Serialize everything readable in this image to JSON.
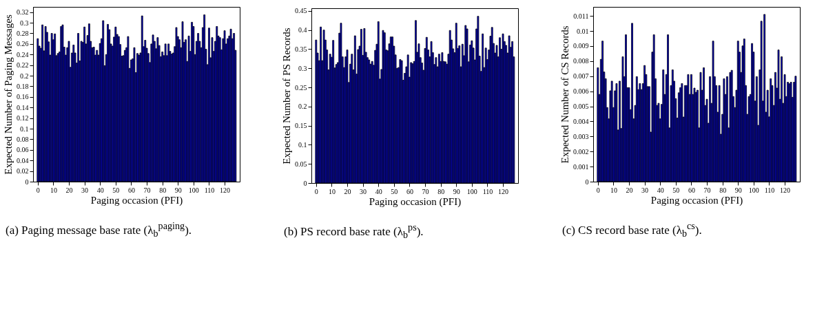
{
  "chart_data": [
    {
      "type": "bar",
      "xlabel": "Paging occasion (PFI)",
      "ylabel": "Expected Number of Paging Messages",
      "annotations": [
        "(a) Paging message base rate (λ$_{b}$$^{paging}$)."
      ],
      "color": "#0000cc",
      "xlim": [
        -0.8,
        127.5
      ],
      "xticks": [
        0,
        10,
        20,
        30,
        40,
        50,
        60,
        70,
        80,
        90,
        100,
        110,
        120
      ],
      "ylim": [
        0,
        0.33
      ],
      "yticks": [
        0,
        0.02,
        0.04,
        0.06,
        0.08,
        0.1,
        0.12,
        0.14,
        0.16,
        0.18,
        0.2,
        0.22,
        0.24,
        0.26,
        0.28,
        0.3,
        0.32
      ],
      "grid": false,
      "x": [
        0,
        1,
        2,
        3,
        4,
        5,
        6,
        7,
        8,
        9,
        10,
        11,
        12,
        13,
        14,
        15,
        16,
        17,
        18,
        19,
        20,
        21,
        22,
        23,
        24,
        25,
        26,
        27,
        28,
        29,
        30,
        31,
        32,
        33,
        34,
        35,
        36,
        37,
        38,
        39,
        40,
        41,
        42,
        43,
        44,
        45,
        46,
        47,
        48,
        49,
        50,
        51,
        52,
        53,
        54,
        55,
        56,
        57,
        58,
        59,
        60,
        61,
        62,
        63,
        64,
        65,
        66,
        67,
        68,
        69,
        70,
        71,
        72,
        73,
        74,
        75,
        76,
        77,
        78,
        79,
        80,
        81,
        82,
        83,
        84,
        85,
        86,
        87,
        88,
        89,
        90,
        91,
        92,
        93,
        94,
        95,
        96,
        97,
        98,
        99,
        100,
        101,
        102,
        103,
        104,
        105,
        106,
        107,
        108,
        109,
        110,
        111,
        112,
        113,
        114,
        115,
        116,
        117,
        118,
        119,
        120,
        121,
        122,
        123,
        124,
        125,
        126,
        127
      ],
      "values": [
        0.27,
        0.256,
        0.252,
        0.296,
        0.247,
        0.293,
        0.282,
        0.264,
        0.239,
        0.28,
        0.268,
        0.279,
        0.238,
        0.242,
        0.245,
        0.293,
        0.296,
        0.254,
        0.239,
        0.253,
        0.265,
        0.216,
        0.243,
        0.258,
        0.243,
        0.224,
        0.28,
        0.228,
        0.265,
        0.263,
        0.292,
        0.26,
        0.276,
        0.298,
        0.265,
        0.253,
        0.254,
        0.239,
        0.248,
        0.239,
        0.261,
        0.27,
        0.304,
        0.219,
        0.24,
        0.297,
        0.287,
        0.26,
        0.256,
        0.273,
        0.292,
        0.278,
        0.274,
        0.259,
        0.237,
        0.238,
        0.248,
        0.253,
        0.274,
        0.214,
        0.23,
        0.232,
        0.253,
        0.206,
        0.242,
        0.239,
        0.243,
        0.313,
        0.255,
        0.267,
        0.252,
        0.242,
        0.225,
        0.26,
        0.277,
        0.265,
        0.251,
        0.272,
        0.257,
        0.236,
        0.245,
        0.238,
        0.26,
        0.238,
        0.26,
        0.246,
        0.241,
        0.243,
        0.255,
        0.291,
        0.274,
        0.268,
        0.253,
        0.302,
        0.263,
        0.268,
        0.227,
        0.275,
        0.246,
        0.301,
        0.293,
        0.24,
        0.265,
        0.28,
        0.265,
        0.253,
        0.291,
        0.315,
        0.25,
        0.221,
        0.29,
        0.234,
        0.272,
        0.246,
        0.265,
        0.293,
        0.275,
        0.272,
        0.249,
        0.27,
        0.285,
        0.26,
        0.27,
        0.275,
        0.288,
        0.27,
        0.28,
        0.248
      ]
    },
    {
      "type": "bar",
      "xlabel": "Paging occasion (PFI)",
      "ylabel": "Expected Number of PS Records",
      "annotations": [
        "(b) PS record base rate (λ$_{b}$$^{ps}$)."
      ],
      "color": "#0000cc",
      "xlim": [
        -0.8,
        127.5
      ],
      "xticks": [
        0,
        10,
        20,
        30,
        40,
        50,
        60,
        70,
        80,
        90,
        100,
        110,
        120
      ],
      "ylim": [
        0,
        0.457
      ],
      "yticks": [
        0,
        0.05,
        0.1,
        0.15,
        0.2,
        0.25,
        0.3,
        0.35,
        0.4,
        0.45
      ],
      "grid": false,
      "x": [
        0,
        1,
        2,
        3,
        4,
        5,
        6,
        7,
        8,
        9,
        10,
        11,
        12,
        13,
        14,
        15,
        16,
        17,
        18,
        19,
        20,
        21,
        22,
        23,
        24,
        25,
        26,
        27,
        28,
        29,
        30,
        31,
        32,
        33,
        34,
        35,
        36,
        37,
        38,
        39,
        40,
        41,
        42,
        43,
        44,
        45,
        46,
        47,
        48,
        49,
        50,
        51,
        52,
        53,
        54,
        55,
        56,
        57,
        58,
        59,
        60,
        61,
        62,
        63,
        64,
        65,
        66,
        67,
        68,
        69,
        70,
        71,
        72,
        73,
        74,
        75,
        76,
        77,
        78,
        79,
        80,
        81,
        82,
        83,
        84,
        85,
        86,
        87,
        88,
        89,
        90,
        91,
        92,
        93,
        94,
        95,
        96,
        97,
        98,
        99,
        100,
        101,
        102,
        103,
        104,
        105,
        106,
        107,
        108,
        109,
        110,
        111,
        112,
        113,
        114,
        115,
        116,
        117,
        118,
        119,
        120,
        121,
        122,
        123,
        124,
        125,
        126,
        127
      ],
      "values": [
        0.374,
        0.34,
        0.32,
        0.408,
        0.32,
        0.4,
        0.374,
        0.348,
        0.296,
        0.337,
        0.329,
        0.373,
        0.301,
        0.31,
        0.315,
        0.392,
        0.418,
        0.33,
        0.302,
        0.33,
        0.348,
        0.263,
        0.311,
        0.337,
        0.296,
        0.385,
        0.285,
        0.349,
        0.358,
        0.402,
        0.334,
        0.404,
        0.342,
        0.328,
        0.322,
        0.311,
        0.318,
        0.308,
        0.347,
        0.363,
        0.422,
        0.272,
        0.297,
        0.399,
        0.393,
        0.348,
        0.346,
        0.364,
        0.382,
        0.382,
        0.358,
        0.335,
        0.3,
        0.302,
        0.323,
        0.32,
        0.269,
        0.287,
        0.304,
        0.335,
        0.277,
        0.315,
        0.312,
        0.318,
        0.425,
        0.342,
        0.364,
        0.328,
        0.314,
        0.295,
        0.352,
        0.381,
        0.348,
        0.33,
        0.37,
        0.341,
        0.31,
        0.328,
        0.304,
        0.337,
        0.318,
        0.341,
        0.318,
        0.317,
        0.311,
        0.337,
        0.399,
        0.374,
        0.351,
        0.341,
        0.418,
        0.352,
        0.359,
        0.304,
        0.363,
        0.333,
        0.412,
        0.403,
        0.317,
        0.361,
        0.372,
        0.353,
        0.322,
        0.403,
        0.436,
        0.332,
        0.292,
        0.39,
        0.302,
        0.353,
        0.323,
        0.348,
        0.384,
        0.407,
        0.365,
        0.34,
        0.36,
        0.33,
        0.38,
        0.35,
        0.39,
        0.37,
        0.36,
        0.34,
        0.385,
        0.355,
        0.37,
        0.33
      ]
    },
    {
      "type": "bar",
      "xlabel": "Paging occasion (PFI)",
      "ylabel": "Expected Number of CS Records",
      "annotations": [
        "(c) CS record base rate (λ$_{b}$$^{cs}$)."
      ],
      "color": "#0000cc",
      "xlim": [
        -0.8,
        127.5
      ],
      "xticks": [
        0,
        10,
        20,
        30,
        40,
        50,
        60,
        70,
        80,
        90,
        100,
        110,
        120
      ],
      "ylim": [
        0,
        0.0116
      ],
      "yticks": [
        0,
        0.001,
        0.002,
        0.003,
        0.004,
        0.005,
        0.006,
        0.007,
        0.008,
        0.009,
        0.01,
        0.011
      ],
      "grid": false,
      "x": [
        0,
        1,
        2,
        3,
        4,
        5,
        6,
        7,
        8,
        9,
        10,
        11,
        12,
        13,
        14,
        15,
        16,
        17,
        18,
        19,
        20,
        21,
        22,
        23,
        24,
        25,
        26,
        27,
        28,
        29,
        30,
        31,
        32,
        33,
        34,
        35,
        36,
        37,
        38,
        39,
        40,
        41,
        42,
        43,
        44,
        45,
        46,
        47,
        48,
        49,
        50,
        51,
        52,
        53,
        54,
        55,
        56,
        57,
        58,
        59,
        60,
        61,
        62,
        63,
        64,
        65,
        66,
        67,
        68,
        69,
        70,
        71,
        72,
        73,
        74,
        75,
        76,
        77,
        78,
        79,
        80,
        81,
        82,
        83,
        84,
        85,
        86,
        87,
        88,
        89,
        90,
        91,
        92,
        93,
        94,
        95,
        96,
        97,
        98,
        99,
        100,
        101,
        102,
        103,
        104,
        105,
        106,
        107,
        108,
        109,
        110,
        111,
        112,
        113,
        114,
        115,
        116,
        117,
        118,
        119,
        120,
        121,
        122,
        123,
        124,
        125,
        126,
        127
      ],
      "values": [
        0.00756,
        0.00579,
        0.00812,
        0.00933,
        0.00728,
        0.00683,
        0.00492,
        0.00417,
        0.00603,
        0.00667,
        0.00492,
        0.00603,
        0.00651,
        0.00343,
        0.00667,
        0.00353,
        0.00829,
        0.00697,
        0.00975,
        0.00624,
        0.00624,
        0.00478,
        0.01051,
        0.00417,
        0.00506,
        0.00697,
        0.00611,
        0.00651,
        0.00611,
        0.00651,
        0.00771,
        0.00711,
        0.00631,
        0.00631,
        0.00329,
        0.0086,
        0.00975,
        0.00683,
        0.00506,
        0.0052,
        0.00417,
        0.00513,
        0.00742,
        0.00579,
        0.00711,
        0.00975,
        0.00357,
        0.00638,
        0.00742,
        0.00667,
        0.00551,
        0.00422,
        0.0059,
        0.00624,
        0.00651,
        0.00429,
        0.00638,
        0.00638,
        0.00711,
        0.00579,
        0.00711,
        0.00579,
        0.00621,
        0.00593,
        0.00607,
        0.00357,
        0.00725,
        0.00607,
        0.00756,
        0.00506,
        0.00547,
        0.00388,
        0.00697,
        0.0052,
        0.00933,
        0.00697,
        0.00638,
        0.00461,
        0.00638,
        0.00315,
        0.00447,
        0.00683,
        0.00579,
        0.00697,
        0.00357,
        0.00725,
        0.00739,
        0.00565,
        0.00492,
        0.00607,
        0.00933,
        0.0086,
        0.00725,
        0.00901,
        0.00947,
        0.00638,
        0.00447,
        0.00565,
        0.00579,
        0.00917,
        0.0086,
        0.00535,
        0.00697,
        0.00374,
        0.00742,
        0.01065,
        0.00535,
        0.0111,
        0.00461,
        0.00607,
        0.0043,
        0.00683,
        0.00638,
        0.00506,
        0.00725,
        0.00621,
        0.00874,
        0.00547,
        0.00829,
        0.0052,
        0.00711,
        0.00565,
        0.0066,
        0.0065,
        0.0066,
        0.0056,
        0.0066,
        0.007
      ]
    }
  ]
}
